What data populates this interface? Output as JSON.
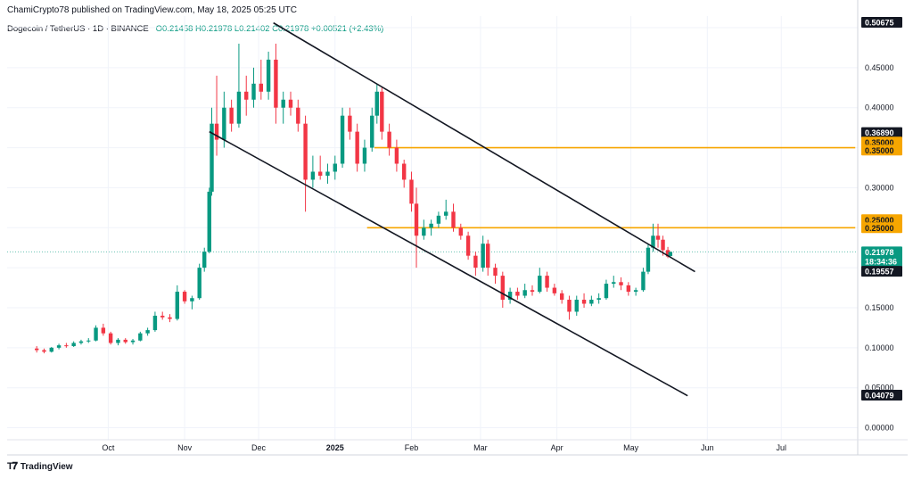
{
  "header": {
    "published_text": "ChamiCrypto78 published on TradingView.com, May 18, 2025 05:25 UTC"
  },
  "symbol": {
    "name": "Dogecoin / TetherUS · 1D · BINANCE",
    "ohlc": "O0.21458  H0.21978  L0.21402  C0.21978  +0.00521 (+2.43%)"
  },
  "footer": {
    "brand": "TradingView",
    "logo": "tradingview-logo-icon"
  },
  "colors": {
    "up": "#089981",
    "down": "#f23645",
    "channel": "#131722",
    "level": "#f7a600",
    "price_tag": "#089981",
    "dark_tag": "#131722"
  },
  "chart_data": {
    "type": "candlestick",
    "ylim": [
      -0.015,
      0.5145
    ],
    "x_tick_labels": [
      "Oct",
      "Nov",
      "Dec",
      "2025",
      "Feb",
      "Mar",
      "Apr",
      "May",
      "Jun",
      "Jul"
    ],
    "y_tick_labels": [
      "0.45000",
      "0.40000",
      "0.30000",
      "0.15000",
      "0.10000",
      "0.05000",
      "0.00000"
    ],
    "price_tags": [
      {
        "label": "0.50675",
        "value": 0.50675,
        "style": "dark"
      },
      {
        "label": "0.36890",
        "value": 0.3689,
        "style": "dark"
      },
      {
        "label": "0.35000",
        "value": 0.357,
        "style": "level"
      },
      {
        "label": "0.35000",
        "value": 0.347,
        "style": "level"
      },
      {
        "label": "0.25000",
        "value": 0.26,
        "style": "level"
      },
      {
        "label": "0.25000",
        "value": 0.25,
        "style": "level"
      },
      {
        "label": "0.21978",
        "value": 0.21978,
        "style": "price"
      },
      {
        "label": "18:34:36",
        "value": 0.208,
        "style": "price"
      },
      {
        "label": "0.19557",
        "value": 0.19557,
        "style": "dark"
      },
      {
        "label": "0.04079",
        "value": 0.04079,
        "style": "dark"
      }
    ],
    "horizontal_levels": [
      {
        "value": 0.35,
        "from": "2025-01-17",
        "to": "2025-07-31"
      },
      {
        "value": 0.25,
        "from": "2025-01-14",
        "to": "2025-07-31"
      }
    ],
    "current_price": 0.21978,
    "channel_lines": [
      {
        "from": [
          "2024-12-07",
          0.506
        ],
        "to": [
          "2025-05-27",
          0.195
        ]
      },
      {
        "from": [
          "2024-11-11",
          0.37
        ],
        "to": [
          "2025-05-24",
          0.04
        ]
      }
    ],
    "series": [
      {
        "values": [
          [
            "2024-09-02",
            0.099,
            0.102,
            0.094,
            0.097
          ],
          [
            "2024-09-05",
            0.097,
            0.099,
            0.093,
            0.095
          ],
          [
            "2024-09-08",
            0.095,
            0.101,
            0.094,
            0.1
          ],
          [
            "2024-09-11",
            0.1,
            0.105,
            0.098,
            0.103
          ],
          [
            "2024-09-14",
            0.103,
            0.106,
            0.1,
            0.102
          ],
          [
            "2024-09-17",
            0.102,
            0.108,
            0.101,
            0.106
          ],
          [
            "2024-09-20",
            0.106,
            0.11,
            0.104,
            0.108
          ],
          [
            "2024-09-23",
            0.108,
            0.112,
            0.106,
            0.109
          ],
          [
            "2024-09-26",
            0.109,
            0.128,
            0.108,
            0.125
          ],
          [
            "2024-09-29",
            0.125,
            0.13,
            0.115,
            0.118
          ],
          [
            "2024-10-02",
            0.118,
            0.12,
            0.104,
            0.106
          ],
          [
            "2024-10-05",
            0.106,
            0.112,
            0.103,
            0.11
          ],
          [
            "2024-10-08",
            0.11,
            0.112,
            0.105,
            0.107
          ],
          [
            "2024-10-11",
            0.107,
            0.111,
            0.104,
            0.109
          ],
          [
            "2024-10-14",
            0.109,
            0.12,
            0.108,
            0.118
          ],
          [
            "2024-10-17",
            0.118,
            0.125,
            0.115,
            0.122
          ],
          [
            "2024-10-20",
            0.122,
            0.145,
            0.12,
            0.14
          ],
          [
            "2024-10-23",
            0.14,
            0.145,
            0.135,
            0.138
          ],
          [
            "2024-10-26",
            0.138,
            0.142,
            0.132,
            0.136
          ],
          [
            "2024-10-29",
            0.136,
            0.178,
            0.134,
            0.17
          ],
          [
            "2024-11-01",
            0.17,
            0.172,
            0.155,
            0.158
          ],
          [
            "2024-11-04",
            0.158,
            0.165,
            0.148,
            0.162
          ],
          [
            "2024-11-07",
            0.162,
            0.205,
            0.16,
            0.2
          ],
          [
            "2024-11-09",
            0.2,
            0.225,
            0.195,
            0.22
          ],
          [
            "2024-11-11",
            0.22,
            0.3,
            0.218,
            0.295
          ],
          [
            "2024-11-12",
            0.295,
            0.4,
            0.29,
            0.38
          ],
          [
            "2024-11-14",
            0.38,
            0.44,
            0.34,
            0.36
          ],
          [
            "2024-11-17",
            0.36,
            0.42,
            0.35,
            0.4
          ],
          [
            "2024-11-20",
            0.4,
            0.41,
            0.37,
            0.38
          ],
          [
            "2024-11-23",
            0.38,
            0.48,
            0.375,
            0.42
          ],
          [
            "2024-11-26",
            0.42,
            0.44,
            0.39,
            0.41
          ],
          [
            "2024-11-29",
            0.41,
            0.45,
            0.4,
            0.43
          ],
          [
            "2024-12-02",
            0.43,
            0.46,
            0.41,
            0.42
          ],
          [
            "2024-12-05",
            0.42,
            0.47,
            0.41,
            0.46
          ],
          [
            "2024-12-08",
            0.46,
            0.48,
            0.38,
            0.4
          ],
          [
            "2024-12-11",
            0.4,
            0.42,
            0.38,
            0.41
          ],
          [
            "2024-12-14",
            0.41,
            0.42,
            0.39,
            0.4
          ],
          [
            "2024-12-17",
            0.4,
            0.41,
            0.37,
            0.38
          ],
          [
            "2024-12-20",
            0.38,
            0.39,
            0.27,
            0.31
          ],
          [
            "2024-12-23",
            0.31,
            0.34,
            0.3,
            0.32
          ],
          [
            "2024-12-26",
            0.32,
            0.34,
            0.31,
            0.315
          ],
          [
            "2024-12-29",
            0.315,
            0.33,
            0.305,
            0.32
          ],
          [
            "2025-01-01",
            0.32,
            0.34,
            0.31,
            0.33
          ],
          [
            "2025-01-04",
            0.33,
            0.4,
            0.325,
            0.39
          ],
          [
            "2025-01-07",
            0.39,
            0.4,
            0.36,
            0.37
          ],
          [
            "2025-01-10",
            0.37,
            0.38,
            0.32,
            0.33
          ],
          [
            "2025-01-13",
            0.33,
            0.36,
            0.32,
            0.35
          ],
          [
            "2025-01-16",
            0.35,
            0.4,
            0.345,
            0.39
          ],
          [
            "2025-01-18",
            0.39,
            0.43,
            0.38,
            0.42
          ],
          [
            "2025-01-20",
            0.42,
            0.425,
            0.36,
            0.37
          ],
          [
            "2025-01-23",
            0.37,
            0.38,
            0.34,
            0.35
          ],
          [
            "2025-01-26",
            0.35,
            0.36,
            0.32,
            0.33
          ],
          [
            "2025-01-29",
            0.33,
            0.335,
            0.3,
            0.31
          ],
          [
            "2025-02-01",
            0.31,
            0.32,
            0.27,
            0.28
          ],
          [
            "2025-02-03",
            0.28,
            0.3,
            0.2,
            0.24
          ],
          [
            "2025-02-06",
            0.24,
            0.26,
            0.235,
            0.25
          ],
          [
            "2025-02-09",
            0.25,
            0.26,
            0.24,
            0.255
          ],
          [
            "2025-02-12",
            0.255,
            0.27,
            0.25,
            0.265
          ],
          [
            "2025-02-15",
            0.265,
            0.285,
            0.26,
            0.27
          ],
          [
            "2025-02-18",
            0.27,
            0.28,
            0.245,
            0.25
          ],
          [
            "2025-02-21",
            0.25,
            0.255,
            0.235,
            0.24
          ],
          [
            "2025-02-24",
            0.24,
            0.245,
            0.21,
            0.215
          ],
          [
            "2025-02-27",
            0.215,
            0.22,
            0.19,
            0.2
          ],
          [
            "2025-03-02",
            0.2,
            0.24,
            0.195,
            0.23
          ],
          [
            "2025-03-04",
            0.23,
            0.235,
            0.19,
            0.2
          ],
          [
            "2025-03-07",
            0.2,
            0.205,
            0.18,
            0.19
          ],
          [
            "2025-03-10",
            0.19,
            0.195,
            0.15,
            0.16
          ],
          [
            "2025-03-13",
            0.16,
            0.175,
            0.155,
            0.17
          ],
          [
            "2025-03-16",
            0.17,
            0.175,
            0.16,
            0.165
          ],
          [
            "2025-03-19",
            0.165,
            0.18,
            0.162,
            0.172
          ],
          [
            "2025-03-22",
            0.172,
            0.178,
            0.165,
            0.17
          ],
          [
            "2025-03-25",
            0.17,
            0.2,
            0.168,
            0.19
          ],
          [
            "2025-03-28",
            0.19,
            0.195,
            0.17,
            0.175
          ],
          [
            "2025-03-31",
            0.175,
            0.18,
            0.165,
            0.168
          ],
          [
            "2025-04-03",
            0.168,
            0.172,
            0.155,
            0.16
          ],
          [
            "2025-04-06",
            0.16,
            0.165,
            0.135,
            0.145
          ],
          [
            "2025-04-09",
            0.145,
            0.165,
            0.14,
            0.16
          ],
          [
            "2025-04-12",
            0.16,
            0.168,
            0.15,
            0.155
          ],
          [
            "2025-04-15",
            0.155,
            0.165,
            0.152,
            0.16
          ],
          [
            "2025-04-18",
            0.16,
            0.168,
            0.155,
            0.162
          ],
          [
            "2025-04-21",
            0.162,
            0.185,
            0.16,
            0.18
          ],
          [
            "2025-04-24",
            0.18,
            0.19,
            0.175,
            0.182
          ],
          [
            "2025-04-27",
            0.182,
            0.188,
            0.172,
            0.178
          ],
          [
            "2025-04-30",
            0.178,
            0.182,
            0.165,
            0.17
          ],
          [
            "2025-05-03",
            0.17,
            0.175,
            0.165,
            0.172
          ],
          [
            "2025-05-06",
            0.172,
            0.2,
            0.17,
            0.195
          ],
          [
            "2025-05-08",
            0.195,
            0.23,
            0.192,
            0.225
          ],
          [
            "2025-05-10",
            0.225,
            0.255,
            0.22,
            0.24
          ],
          [
            "2025-05-12",
            0.24,
            0.255,
            0.225,
            0.235
          ],
          [
            "2025-05-14",
            0.235,
            0.24,
            0.215,
            0.222
          ],
          [
            "2025-05-16",
            0.222,
            0.226,
            0.212,
            0.214
          ],
          [
            "2025-05-17",
            0.2146,
            0.2198,
            0.214,
            0.2198
          ]
        ]
      }
    ]
  }
}
